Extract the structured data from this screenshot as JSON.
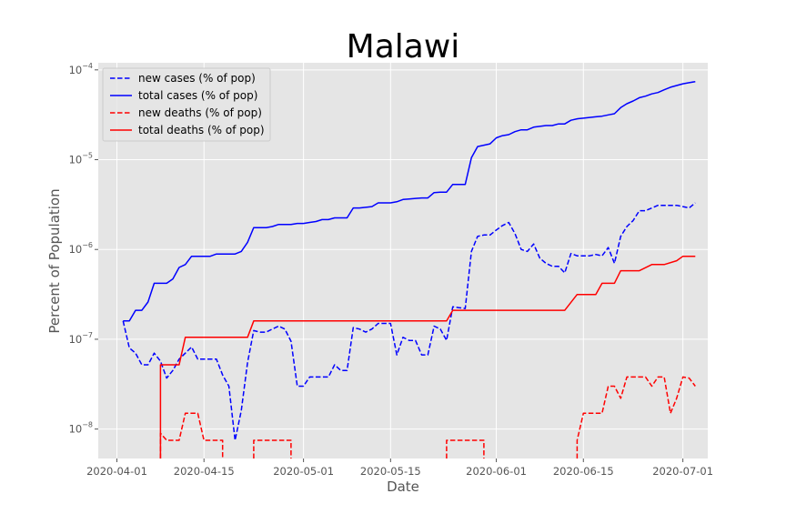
{
  "chart_data": {
    "type": "line",
    "title": "Malawi",
    "xlabel": "Date",
    "ylabel": "Percent of Population",
    "y_scale": "log",
    "ylim": [
      4.7e-09,
      0.00012
    ],
    "xlim": [
      "2020-03-29",
      "2020-07-05"
    ],
    "grid": true,
    "legend_placement": "top-left",
    "x_ticks": [
      "2020-04-01",
      "2020-04-15",
      "2020-05-01",
      "2020-05-15",
      "2020-06-01",
      "2020-06-15",
      "2020-07-01"
    ],
    "y_ticks": [
      {
        "value": 1e-08,
        "exp": "−8"
      },
      {
        "value": 1e-07,
        "exp": "−7"
      },
      {
        "value": 1e-06,
        "exp": "−6"
      },
      {
        "value": 1e-05,
        "exp": "−5"
      },
      {
        "value": 0.0001,
        "exp": "−4"
      }
    ],
    "series": [
      {
        "name": "new cases (% of pop)",
        "color": "#0000ff",
        "dash": "dashed",
        "points": [
          [
            "2020-04-02",
            1.6e-07
          ],
          [
            "2020-04-03",
            8e-08
          ],
          [
            "2020-04-04",
            7e-08
          ],
          [
            "2020-04-05",
            5.2e-08
          ],
          [
            "2020-04-06",
            5.2e-08
          ],
          [
            "2020-04-07",
            7e-08
          ],
          [
            "2020-04-08",
            5.7e-08
          ],
          [
            "2020-04-09",
            3.7e-08
          ],
          [
            "2020-04-10",
            4.5e-08
          ],
          [
            "2020-04-11",
            6e-08
          ],
          [
            "2020-04-12",
            7e-08
          ],
          [
            "2020-04-13",
            8.2e-08
          ],
          [
            "2020-04-14",
            6e-08
          ],
          [
            "2020-04-15",
            6e-08
          ],
          [
            "2020-04-16",
            6e-08
          ],
          [
            "2020-04-17",
            6e-08
          ],
          [
            "2020-04-18",
            4e-08
          ],
          [
            "2020-04-19",
            3e-08
          ],
          [
            "2020-04-20",
            7.5e-09
          ],
          [
            "2020-04-21",
            1.6e-08
          ],
          [
            "2020-04-22",
            5.5e-08
          ],
          [
            "2020-04-23",
            1.25e-07
          ],
          [
            "2020-04-24",
            1.2e-07
          ],
          [
            "2020-04-25",
            1.2e-07
          ],
          [
            "2020-04-26",
            1.3e-07
          ],
          [
            "2020-04-27",
            1.4e-07
          ],
          [
            "2020-04-28",
            1.3e-07
          ],
          [
            "2020-04-29",
            9.5e-08
          ],
          [
            "2020-04-30",
            3e-08
          ],
          [
            "2020-05-01",
            3e-08
          ],
          [
            "2020-05-02",
            3.8e-08
          ],
          [
            "2020-05-03",
            3.8e-08
          ],
          [
            "2020-05-04",
            3.8e-08
          ],
          [
            "2020-05-05",
            3.8e-08
          ],
          [
            "2020-05-06",
            5.2e-08
          ],
          [
            "2020-05-07",
            4.5e-08
          ],
          [
            "2020-05-08",
            4.5e-08
          ],
          [
            "2020-05-09",
            1.35e-07
          ],
          [
            "2020-05-10",
            1.3e-07
          ],
          [
            "2020-05-11",
            1.2e-07
          ],
          [
            "2020-05-12",
            1.3e-07
          ],
          [
            "2020-05-13",
            1.5e-07
          ],
          [
            "2020-05-14",
            1.5e-07
          ],
          [
            "2020-05-15",
            1.5e-07
          ],
          [
            "2020-05-16",
            6.7e-08
          ],
          [
            "2020-05-17",
            1.05e-07
          ],
          [
            "2020-05-18",
            9.7e-08
          ],
          [
            "2020-05-19",
            9.7e-08
          ],
          [
            "2020-05-20",
            6.7e-08
          ],
          [
            "2020-05-21",
            6.7e-08
          ],
          [
            "2020-05-22",
            1.4e-07
          ],
          [
            "2020-05-23",
            1.3e-07
          ],
          [
            "2020-05-24",
            9.7e-08
          ],
          [
            "2020-05-25",
            2.3e-07
          ],
          [
            "2020-05-26",
            2.25e-07
          ],
          [
            "2020-05-27",
            2.2e-07
          ],
          [
            "2020-05-28",
            9.5e-07
          ],
          [
            "2020-05-29",
            1.4e-06
          ],
          [
            "2020-05-30",
            1.45e-06
          ],
          [
            "2020-05-31",
            1.45e-06
          ],
          [
            "2020-06-01",
            1.65e-06
          ],
          [
            "2020-06-02",
            1.85e-06
          ],
          [
            "2020-06-03",
            2e-06
          ],
          [
            "2020-06-04",
            1.5e-06
          ],
          [
            "2020-06-05",
            1e-06
          ],
          [
            "2020-06-06",
            9.5e-07
          ],
          [
            "2020-06-07",
            1.15e-06
          ],
          [
            "2020-06-08",
            8e-07
          ],
          [
            "2020-06-09",
            7e-07
          ],
          [
            "2020-06-10",
            6.5e-07
          ],
          [
            "2020-06-11",
            6.5e-07
          ],
          [
            "2020-06-12",
            5.5e-07
          ],
          [
            "2020-06-13",
            9e-07
          ],
          [
            "2020-06-14",
            8.5e-07
          ],
          [
            "2020-06-15",
            8.5e-07
          ],
          [
            "2020-06-16",
            8.5e-07
          ],
          [
            "2020-06-17",
            8.8e-07
          ],
          [
            "2020-06-18",
            8.5e-07
          ],
          [
            "2020-06-19",
            1.05e-06
          ],
          [
            "2020-06-20",
            7e-07
          ],
          [
            "2020-06-21",
            1.4e-06
          ],
          [
            "2020-06-22",
            1.8e-06
          ],
          [
            "2020-06-23",
            2.1e-06
          ],
          [
            "2020-06-24",
            2.7e-06
          ],
          [
            "2020-06-25",
            2.7e-06
          ],
          [
            "2020-06-26",
            2.9e-06
          ],
          [
            "2020-06-27",
            3.1e-06
          ],
          [
            "2020-06-28",
            3.1e-06
          ],
          [
            "2020-06-29",
            3.1e-06
          ],
          [
            "2020-06-30",
            3.1e-06
          ],
          [
            "2020-07-01",
            3e-06
          ],
          [
            "2020-07-02",
            2.9e-06
          ],
          [
            "2020-07-03",
            3.3e-06
          ]
        ]
      },
      {
        "name": "total cases (% of pop)",
        "color": "#0000ff",
        "dash": "solid",
        "points": [
          [
            "2020-04-02",
            1.6e-07
          ],
          [
            "2020-04-03",
            1.6e-07
          ],
          [
            "2020-04-04",
            2.1e-07
          ],
          [
            "2020-04-05",
            2.1e-07
          ],
          [
            "2020-04-06",
            2.6e-07
          ],
          [
            "2020-04-07",
            4.2e-07
          ],
          [
            "2020-04-08",
            4.2e-07
          ],
          [
            "2020-04-09",
            4.2e-07
          ],
          [
            "2020-04-10",
            4.7e-07
          ],
          [
            "2020-04-11",
            6.3e-07
          ],
          [
            "2020-04-12",
            6.8e-07
          ],
          [
            "2020-04-13",
            8.4e-07
          ],
          [
            "2020-04-14",
            8.4e-07
          ],
          [
            "2020-04-15",
            8.4e-07
          ],
          [
            "2020-04-16",
            8.4e-07
          ],
          [
            "2020-04-17",
            8.9e-07
          ],
          [
            "2020-04-18",
            8.9e-07
          ],
          [
            "2020-04-19",
            8.9e-07
          ],
          [
            "2020-04-20",
            8.9e-07
          ],
          [
            "2020-04-21",
            9.5e-07
          ],
          [
            "2020-04-22",
            1.2e-06
          ],
          [
            "2020-04-23",
            1.75e-06
          ],
          [
            "2020-04-24",
            1.75e-06
          ],
          [
            "2020-04-25",
            1.75e-06
          ],
          [
            "2020-04-26",
            1.8e-06
          ],
          [
            "2020-04-27",
            1.9e-06
          ],
          [
            "2020-04-28",
            1.9e-06
          ],
          [
            "2020-04-29",
            1.9e-06
          ],
          [
            "2020-04-30",
            1.95e-06
          ],
          [
            "2020-05-01",
            1.95e-06
          ],
          [
            "2020-05-02",
            2e-06
          ],
          [
            "2020-05-03",
            2.05e-06
          ],
          [
            "2020-05-04",
            2.15e-06
          ],
          [
            "2020-05-05",
            2.15e-06
          ],
          [
            "2020-05-06",
            2.25e-06
          ],
          [
            "2020-05-07",
            2.25e-06
          ],
          [
            "2020-05-08",
            2.25e-06
          ],
          [
            "2020-05-09",
            2.9e-06
          ],
          [
            "2020-05-10",
            2.9e-06
          ],
          [
            "2020-05-11",
            2.95e-06
          ],
          [
            "2020-05-12",
            3e-06
          ],
          [
            "2020-05-13",
            3.3e-06
          ],
          [
            "2020-05-14",
            3.3e-06
          ],
          [
            "2020-05-15",
            3.3e-06
          ],
          [
            "2020-05-16",
            3.4e-06
          ],
          [
            "2020-05-17",
            3.6e-06
          ],
          [
            "2020-05-18",
            3.65e-06
          ],
          [
            "2020-05-19",
            3.7e-06
          ],
          [
            "2020-05-20",
            3.75e-06
          ],
          [
            "2020-05-21",
            3.75e-06
          ],
          [
            "2020-05-22",
            4.3e-06
          ],
          [
            "2020-05-23",
            4.35e-06
          ],
          [
            "2020-05-24",
            4.35e-06
          ],
          [
            "2020-05-25",
            5.3e-06
          ],
          [
            "2020-05-26",
            5.3e-06
          ],
          [
            "2020-05-27",
            5.3e-06
          ],
          [
            "2020-05-28",
            1.05e-05
          ],
          [
            "2020-05-29",
            1.4e-05
          ],
          [
            "2020-05-30",
            1.45e-05
          ],
          [
            "2020-05-31",
            1.5e-05
          ],
          [
            "2020-06-01",
            1.75e-05
          ],
          [
            "2020-06-02",
            1.85e-05
          ],
          [
            "2020-06-03",
            1.9e-05
          ],
          [
            "2020-06-04",
            2.05e-05
          ],
          [
            "2020-06-05",
            2.15e-05
          ],
          [
            "2020-06-06",
            2.15e-05
          ],
          [
            "2020-06-07",
            2.3e-05
          ],
          [
            "2020-06-08",
            2.35e-05
          ],
          [
            "2020-06-09",
            2.4e-05
          ],
          [
            "2020-06-10",
            2.4e-05
          ],
          [
            "2020-06-11",
            2.5e-05
          ],
          [
            "2020-06-12",
            2.5e-05
          ],
          [
            "2020-06-13",
            2.75e-05
          ],
          [
            "2020-06-14",
            2.85e-05
          ],
          [
            "2020-06-15",
            2.9e-05
          ],
          [
            "2020-06-16",
            2.95e-05
          ],
          [
            "2020-06-17",
            3e-05
          ],
          [
            "2020-06-18",
            3.05e-05
          ],
          [
            "2020-06-19",
            3.15e-05
          ],
          [
            "2020-06-20",
            3.25e-05
          ],
          [
            "2020-06-21",
            3.8e-05
          ],
          [
            "2020-06-22",
            4.2e-05
          ],
          [
            "2020-06-23",
            4.5e-05
          ],
          [
            "2020-06-24",
            4.9e-05
          ],
          [
            "2020-06-25",
            5.1e-05
          ],
          [
            "2020-06-26",
            5.4e-05
          ],
          [
            "2020-06-27",
            5.6e-05
          ],
          [
            "2020-06-28",
            6e-05
          ],
          [
            "2020-06-29",
            6.4e-05
          ],
          [
            "2020-06-30",
            6.7e-05
          ],
          [
            "2020-07-01",
            7e-05
          ],
          [
            "2020-07-02",
            7.2e-05
          ],
          [
            "2020-07-03",
            7.4e-05
          ]
        ]
      },
      {
        "name": "new deaths (% of pop)",
        "color": "#ff0000",
        "dash": "dashed",
        "segments": [
          [
            [
              "2020-04-08",
              3e-09
            ],
            [
              "2020-04-08",
              9e-09
            ],
            [
              "2020-04-09",
              7.5e-09
            ],
            [
              "2020-04-10",
              7.5e-09
            ],
            [
              "2020-04-11",
              7.5e-09
            ],
            [
              "2020-04-12",
              1.5e-08
            ],
            [
              "2020-04-13",
              1.5e-08
            ],
            [
              "2020-04-14",
              1.5e-08
            ],
            [
              "2020-04-15",
              7.5e-09
            ],
            [
              "2020-04-16",
              7.5e-09
            ],
            [
              "2020-04-17",
              7.5e-09
            ],
            [
              "2020-04-18",
              7.5e-09
            ],
            [
              "2020-04-18",
              3e-09
            ]
          ],
          [
            [
              "2020-04-23",
              3e-09
            ],
            [
              "2020-04-23",
              7.5e-09
            ],
            [
              "2020-04-29",
              7.5e-09
            ],
            [
              "2020-04-29",
              3e-09
            ]
          ],
          [
            [
              "2020-05-24",
              3e-09
            ],
            [
              "2020-05-24",
              7.5e-09
            ],
            [
              "2020-05-30",
              7.5e-09
            ],
            [
              "2020-05-30",
              3e-09
            ]
          ],
          [
            [
              "2020-06-14",
              3e-09
            ],
            [
              "2020-06-14",
              7.5e-09
            ],
            [
              "2020-06-15",
              1.5e-08
            ],
            [
              "2020-06-16",
              1.5e-08
            ],
            [
              "2020-06-17",
              1.5e-08
            ],
            [
              "2020-06-18",
              1.5e-08
            ],
            [
              "2020-06-19",
              3e-08
            ],
            [
              "2020-06-20",
              3e-08
            ],
            [
              "2020-06-21",
              2.2e-08
            ],
            [
              "2020-06-22",
              3.8e-08
            ],
            [
              "2020-06-23",
              3.8e-08
            ],
            [
              "2020-06-24",
              3.8e-08
            ],
            [
              "2020-06-25",
              3.8e-08
            ],
            [
              "2020-06-26",
              3e-08
            ],
            [
              "2020-06-27",
              3.8e-08
            ],
            [
              "2020-06-28",
              3.8e-08
            ],
            [
              "2020-06-29",
              1.5e-08
            ],
            [
              "2020-06-30",
              2.2e-08
            ],
            [
              "2020-07-01",
              3.8e-08
            ],
            [
              "2020-07-02",
              3.7e-08
            ],
            [
              "2020-07-03",
              3e-08
            ]
          ]
        ]
      },
      {
        "name": "total deaths (% of pop)",
        "color": "#ff0000",
        "dash": "solid",
        "segments": [
          [
            [
              "2020-04-08",
              3e-09
            ],
            [
              "2020-04-08",
              5.2e-08
            ],
            [
              "2020-04-11",
              5.2e-08
            ],
            [
              "2020-04-12",
              1.05e-07
            ],
            [
              "2020-04-22",
              1.05e-07
            ],
            [
              "2020-04-23",
              1.6e-07
            ],
            [
              "2020-05-24",
              1.6e-07
            ],
            [
              "2020-05-25",
              2.1e-07
            ],
            [
              "2020-06-12",
              2.1e-07
            ],
            [
              "2020-06-14",
              3.15e-07
            ],
            [
              "2020-06-17",
              3.15e-07
            ],
            [
              "2020-06-18",
              4.2e-07
            ],
            [
              "2020-06-20",
              4.2e-07
            ],
            [
              "2020-06-21",
              5.8e-07
            ],
            [
              "2020-06-24",
              5.8e-07
            ],
            [
              "2020-06-26",
              6.8e-07
            ],
            [
              "2020-06-28",
              6.8e-07
            ],
            [
              "2020-06-30",
              7.5e-07
            ],
            [
              "2020-07-01",
              8.4e-07
            ],
            [
              "2020-07-03",
              8.4e-07
            ]
          ]
        ]
      }
    ]
  }
}
